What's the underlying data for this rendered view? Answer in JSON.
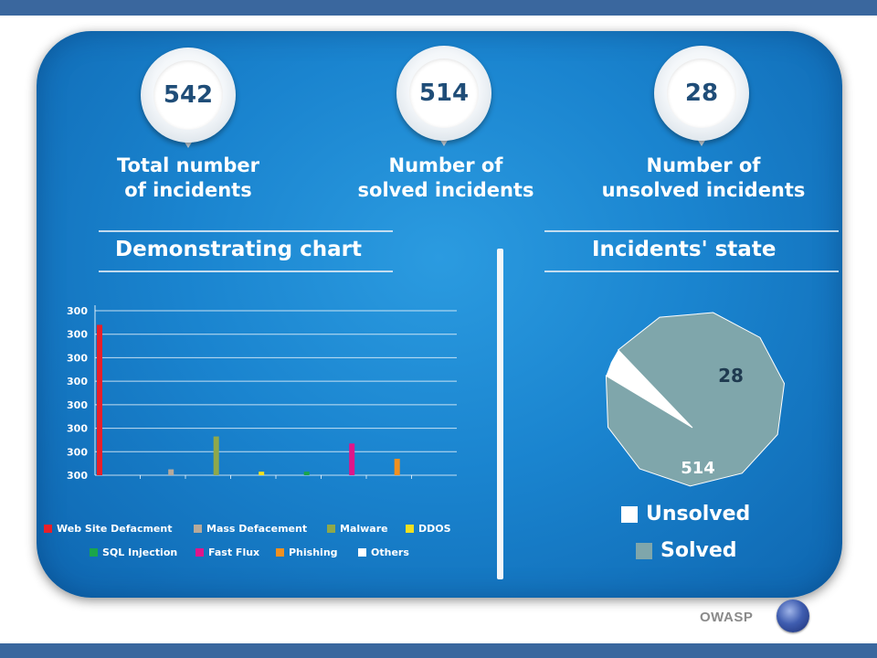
{
  "stats": [
    {
      "value": "542",
      "label_line1": "Total number",
      "label_line2": "of incidents"
    },
    {
      "value": "514",
      "label_line1": "Number of",
      "label_line2": "solved incidents"
    },
    {
      "value": "28",
      "label_line1": "Number of",
      "label_line2": "unsolved incidents"
    }
  ],
  "sections": {
    "left_title": "Demonstrating chart",
    "right_title": "Incidents' state"
  },
  "footer": {
    "logo_text": "OWASP"
  },
  "chart_data": [
    {
      "type": "bar",
      "title": "Demonstrating chart",
      "y_tick_labels": [
        "300",
        "300",
        "300",
        "300",
        "300",
        "300",
        "300",
        "300"
      ],
      "ylim": [
        0,
        7
      ],
      "grid": true,
      "legend_position": "bottom",
      "categories": [
        "Web Site Defacment",
        "Mass Defacement",
        "Malware",
        "DDOS",
        "SQL Injection",
        "Fast Flux",
        "Phishing",
        "Others"
      ],
      "values": [
        6.4,
        0.25,
        1.65,
        0.15,
        0.15,
        1.35,
        0.7,
        0
      ],
      "colors": [
        "#e8202a",
        "#b7a99a",
        "#8fa84a",
        "#f0e020",
        "#1aa54a",
        "#e0158a",
        "#f09020",
        "#ffffff"
      ]
    },
    {
      "type": "pie",
      "title": "Incidents' state",
      "categories": [
        "Unsolved",
        "Solved"
      ],
      "values": [
        28,
        514
      ],
      "data_labels": [
        "28",
        "514"
      ],
      "colors": [
        "#ffffff",
        "#7fa6ab"
      ],
      "legend_position": "bottom"
    }
  ]
}
